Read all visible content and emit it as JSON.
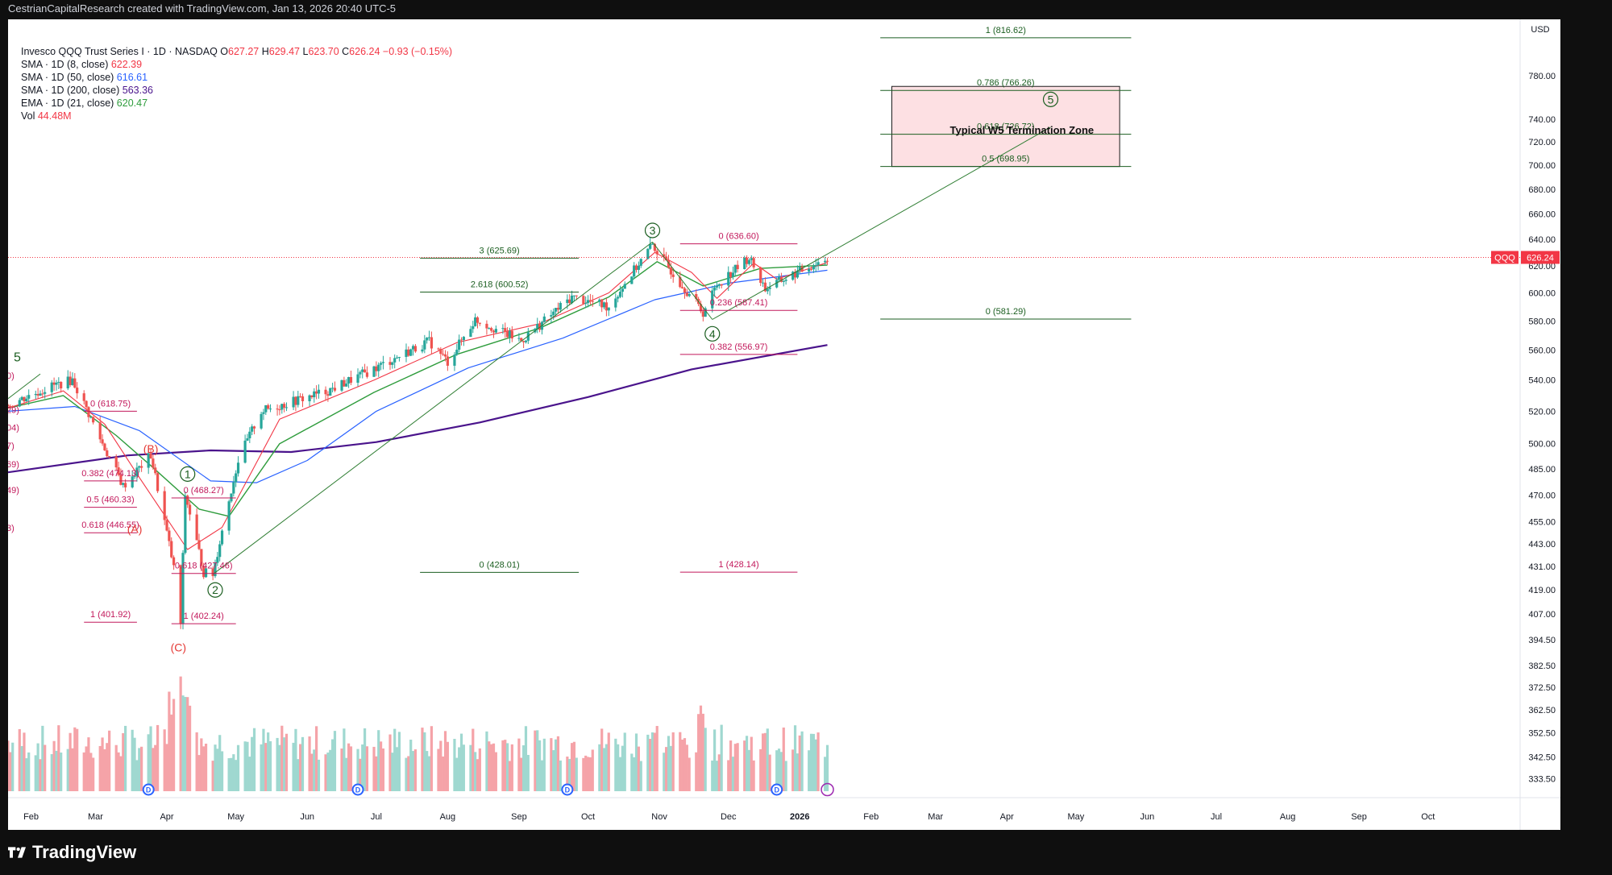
{
  "header": {
    "attribution": "CestrianCapitalResearch created with TradingView.com, Jan 13, 2026 20:40 UTC-5"
  },
  "legend": {
    "symbol_title": "Invesco QQQ Trust Series I · 1D · NASDAQ",
    "ohlc": [
      {
        "k": "O",
        "v": "627.27"
      },
      {
        "k": "H",
        "v": "629.47"
      },
      {
        "k": "L",
        "v": "623.70"
      },
      {
        "k": "C",
        "v": "626.24"
      }
    ],
    "change": "−0.93 (−0.15%)",
    "indicators": [
      {
        "label": "SMA · 1D (8, close)",
        "value": "622.39",
        "color": "#f23645"
      },
      {
        "label": "SMA · 1D (50, close)",
        "value": "616.61",
        "color": "#2962ff"
      },
      {
        "label": "SMA · 1D (200, close)",
        "value": "563.36",
        "color": "#4a148c"
      },
      {
        "label": "EMA · 1D (21, close)",
        "value": "620.47",
        "color": "#2e9c3c"
      },
      {
        "label": "Vol",
        "value": "44.48M",
        "color": "#f23645"
      }
    ]
  },
  "brand": {
    "name": "TradingView"
  },
  "colors": {
    "up": "#26a69a",
    "down": "#ef5350",
    "sma8": "#f23645",
    "sma50": "#2962ff",
    "sma200": "#4a148c",
    "ema21": "#2e9c3c",
    "fib_green": "#1b5e20",
    "fib_red": "#c2185b",
    "zone_fill": "#fde0e3",
    "last_price_bg": "#f23645"
  },
  "chart_data": {
    "type": "candlestick",
    "currency": "USD",
    "symbol_tag": "QQQ",
    "last_price": 626.24,
    "log_scale": true,
    "ylim": [
      326,
      835
    ],
    "y_ticks": [
      333.5,
      342.5,
      352.5,
      362.5,
      372.5,
      382.5,
      394.5,
      407.0,
      419.0,
      431.0,
      443.0,
      455.0,
      470.0,
      485.0,
      500.0,
      520.0,
      540.0,
      560.0,
      580.0,
      600.0,
      620.0,
      640.0,
      660.0,
      680.0,
      700.0,
      720.0,
      740.0,
      780.0
    ],
    "x_range": [
      "2025-01-22",
      "2026-11-10"
    ],
    "x_ticks": [
      {
        "label": "Feb",
        "date": "2025-02-01"
      },
      {
        "label": "Mar",
        "date": "2025-03-01"
      },
      {
        "label": "Apr",
        "date": "2025-04-01"
      },
      {
        "label": "May",
        "date": "2025-05-01"
      },
      {
        "label": "Jun",
        "date": "2025-06-01"
      },
      {
        "label": "Jul",
        "date": "2025-07-01"
      },
      {
        "label": "Aug",
        "date": "2025-08-01"
      },
      {
        "label": "Sep",
        "date": "2025-09-01"
      },
      {
        "label": "Oct",
        "date": "2025-10-01"
      },
      {
        "label": "Nov",
        "date": "2025-11-01"
      },
      {
        "label": "Dec",
        "date": "2025-12-01"
      },
      {
        "label": "2026",
        "date": "2026-01-01"
      },
      {
        "label": "Feb",
        "date": "2026-02-01"
      },
      {
        "label": "Mar",
        "date": "2026-03-01"
      },
      {
        "label": "Apr",
        "date": "2026-04-01"
      },
      {
        "label": "May",
        "date": "2026-05-01"
      },
      {
        "label": "Jun",
        "date": "2026-06-01"
      },
      {
        "label": "Jul",
        "date": "2026-07-01"
      },
      {
        "label": "Aug",
        "date": "2026-08-01"
      },
      {
        "label": "Sep",
        "date": "2026-09-01"
      },
      {
        "label": "Oct",
        "date": "2026-10-01"
      }
    ],
    "price_path": [
      [
        "2025-01-22",
        524
      ],
      [
        "2025-02-10",
        536
      ],
      [
        "2025-02-19",
        540
      ],
      [
        "2025-03-04",
        500
      ],
      [
        "2025-03-13",
        475
      ],
      [
        "2025-03-25",
        493
      ],
      [
        "2025-04-04",
        430
      ],
      [
        "2025-04-07",
        402
      ],
      [
        "2025-04-09",
        470
      ],
      [
        "2025-04-17",
        428
      ],
      [
        "2025-04-21",
        427
      ],
      [
        "2025-05-02",
        490
      ],
      [
        "2025-05-12",
        520
      ],
      [
        "2025-06-10",
        533
      ],
      [
        "2025-07-01",
        548
      ],
      [
        "2025-07-24",
        566
      ],
      [
        "2025-08-01",
        552
      ],
      [
        "2025-08-13",
        581
      ],
      [
        "2025-09-02",
        566
      ],
      [
        "2025-09-24",
        597
      ],
      [
        "2025-10-10",
        590
      ],
      [
        "2025-10-29",
        636
      ],
      [
        "2025-11-04",
        621
      ],
      [
        "2025-11-20",
        586
      ],
      [
        "2025-11-26",
        606
      ],
      [
        "2025-12-10",
        626
      ],
      [
        "2025-12-17",
        603
      ],
      [
        "2026-01-13",
        626
      ]
    ],
    "sma8": [
      [
        "2025-01-22",
        522
      ],
      [
        "2025-02-15",
        533
      ],
      [
        "2025-03-05",
        512
      ],
      [
        "2025-03-20",
        480
      ],
      [
        "2025-04-10",
        440
      ],
      [
        "2025-04-25",
        452
      ],
      [
        "2025-05-20",
        515
      ],
      [
        "2025-06-30",
        540
      ],
      [
        "2025-08-05",
        565
      ],
      [
        "2025-09-10",
        578
      ],
      [
        "2025-10-10",
        600
      ],
      [
        "2025-10-30",
        630
      ],
      [
        "2025-11-15",
        615
      ],
      [
        "2025-11-26",
        596
      ],
      [
        "2025-12-12",
        622
      ],
      [
        "2025-12-22",
        610
      ],
      [
        "2026-01-13",
        622.39
      ]
    ],
    "ema21": [
      [
        "2025-01-22",
        522
      ],
      [
        "2025-02-15",
        530
      ],
      [
        "2025-03-10",
        505
      ],
      [
        "2025-03-25",
        487
      ],
      [
        "2025-04-15",
        462
      ],
      [
        "2025-04-28",
        458
      ],
      [
        "2025-05-20",
        500
      ],
      [
        "2025-06-30",
        532
      ],
      [
        "2025-08-05",
        557
      ],
      [
        "2025-09-10",
        575
      ],
      [
        "2025-10-10",
        597
      ],
      [
        "2025-10-31",
        623
      ],
      [
        "2025-11-20",
        605
      ],
      [
        "2025-12-15",
        618
      ],
      [
        "2026-01-13",
        620.47
      ]
    ],
    "sma50": [
      [
        "2025-01-22",
        520
      ],
      [
        "2025-02-20",
        523
      ],
      [
        "2025-03-20",
        508
      ],
      [
        "2025-04-20",
        478
      ],
      [
        "2025-05-10",
        477
      ],
      [
        "2025-06-01",
        490
      ],
      [
        "2025-07-01",
        520
      ],
      [
        "2025-08-10",
        548
      ],
      [
        "2025-09-20",
        568
      ],
      [
        "2025-10-30",
        595
      ],
      [
        "2025-12-01",
        607
      ],
      [
        "2026-01-13",
        616.61
      ]
    ],
    "sma200": [
      [
        "2025-01-22",
        483
      ],
      [
        "2025-03-15",
        493
      ],
      [
        "2025-04-20",
        496
      ],
      [
        "2025-05-25",
        495
      ],
      [
        "2025-07-01",
        501
      ],
      [
        "2025-08-15",
        513
      ],
      [
        "2025-10-01",
        529
      ],
      [
        "2025-11-15",
        547
      ],
      [
        "2026-01-13",
        563.36
      ]
    ],
    "volume_spikes": [
      [
        "2025-04-04",
        0.85
      ],
      [
        "2025-04-07",
        1.0
      ],
      [
        "2025-04-09",
        0.92
      ],
      [
        "2025-11-20",
        0.72
      ],
      [
        "2025-10-29",
        0.52
      ]
    ],
    "fib_levels": [
      {
        "label": "1 (816.62)",
        "price": 816.62,
        "from": "2026-02-05",
        "to": "2026-05-25",
        "color": "green"
      },
      {
        "label": "0.786 (766.26)",
        "price": 766.26,
        "from": "2026-02-05",
        "to": "2026-05-25",
        "color": "green"
      },
      {
        "label": "0.618 (726.72)",
        "price": 726.72,
        "from": "2026-02-05",
        "to": "2026-05-25",
        "color": "green"
      },
      {
        "label": "0.5 (698.95)",
        "price": 698.95,
        "from": "2026-02-05",
        "to": "2026-05-25",
        "color": "green"
      },
      {
        "label": "0 (581.29)",
        "price": 581.29,
        "from": "2026-02-05",
        "to": "2026-05-25",
        "color": "green"
      },
      {
        "label": "3 (625.69)",
        "price": 625.69,
        "from": "2025-07-20",
        "to": "2025-09-27",
        "color": "green"
      },
      {
        "label": "2.618 (600.52)",
        "price": 600.52,
        "from": "2025-07-20",
        "to": "2025-09-27",
        "color": "green"
      },
      {
        "label": "0 (428.01)",
        "price": 428.01,
        "from": "2025-07-20",
        "to": "2025-09-27",
        "color": "green"
      },
      {
        "label": "0 (636.60)",
        "price": 636.6,
        "from": "2025-11-10",
        "to": "2025-12-31",
        "color": "red"
      },
      {
        "label": "0.236 (587.41)",
        "price": 587.41,
        "from": "2025-11-10",
        "to": "2025-12-31",
        "color": "red"
      },
      {
        "label": "0.382 (556.97)",
        "price": 556.97,
        "from": "2025-11-10",
        "to": "2025-12-31",
        "color": "red"
      },
      {
        "label": "1 (428.14)",
        "price": 428.14,
        "from": "2025-11-10",
        "to": "2025-12-31",
        "color": "red"
      },
      {
        "label": "0 (618.75)",
        "price": 618.75,
        "from": "2025-02-24",
        "to": "2025-03-19",
        "color": "red",
        "plot_price": 520
      },
      {
        "label": "0.382 (474.13)",
        "price": 474.13,
        "from": "2025-02-24",
        "to": "2025-03-19",
        "color": "red",
        "plot_price": 478
      },
      {
        "label": "0.5 (460.33)",
        "price": 460.33,
        "from": "2025-02-24",
        "to": "2025-03-19",
        "color": "red",
        "plot_price": 463
      },
      {
        "label": "0.618 (446.55)",
        "price": 446.55,
        "from": "2025-02-24",
        "to": "2025-03-19",
        "color": "red",
        "plot_price": 449
      },
      {
        "label": "1 (401.92)",
        "price": 401.92,
        "from": "2025-02-24",
        "to": "2025-03-19",
        "color": "red",
        "plot_price": 403
      },
      {
        "label": "0 (468.27)",
        "price": 468.27,
        "from": "2025-04-03",
        "to": "2025-05-01",
        "color": "red"
      },
      {
        "label": "0.618 (427.46)",
        "price": 427.46,
        "from": "2025-04-03",
        "to": "2025-05-01",
        "color": "red"
      },
      {
        "label": "1 (402.24)",
        "price": 402.24,
        "from": "2025-04-03",
        "to": "2025-05-01",
        "color": "red"
      }
    ],
    "clipped_left_labels": [
      {
        "label": "0)",
        "price": 541
      },
      {
        "label": "29)",
        "price": 519
      },
      {
        "label": "04)",
        "price": 508
      },
      {
        "label": "7)",
        "price": 497
      },
      {
        "label": "69)",
        "price": 486
      },
      {
        "label": "49)",
        "price": 471
      },
      {
        "label": "3)",
        "price": 450
      }
    ],
    "wave_labels": [
      {
        "label": "5",
        "date": "2025-01-26",
        "price": 555,
        "style": "plain",
        "color": "green"
      },
      {
        "label": "(B)",
        "date": "2025-03-25",
        "price": 497,
        "style": "plain",
        "color": "red"
      },
      {
        "label": "(A)",
        "date": "2025-03-18",
        "price": 451,
        "style": "plain",
        "color": "red"
      },
      {
        "label": "(C)",
        "date": "2025-04-06",
        "price": 391,
        "style": "plain",
        "color": "red"
      },
      {
        "label": "1",
        "date": "2025-04-10",
        "price": 482,
        "style": "circled",
        "color": "green"
      },
      {
        "label": "2",
        "date": "2025-04-22",
        "price": 419,
        "style": "circled",
        "color": "green"
      },
      {
        "label": "3",
        "date": "2025-10-29",
        "price": 647,
        "style": "circled",
        "color": "green"
      },
      {
        "label": "4",
        "date": "2025-11-24",
        "price": 571,
        "style": "circled",
        "color": "green"
      },
      {
        "label": "5",
        "date": "2026-04-20",
        "price": 758,
        "style": "circled",
        "color": "green"
      }
    ],
    "trend_lines": [
      {
        "points": [
          [
            "2025-04-21",
            427
          ],
          [
            "2025-10-29",
            638
          ]
        ]
      },
      {
        "points": [
          [
            "2025-10-29",
            638
          ],
          [
            "2025-11-24",
            581
          ]
        ]
      },
      {
        "points": [
          [
            "2025-11-24",
            581
          ],
          [
            "2026-04-20",
            733
          ]
        ]
      },
      {
        "points": [
          [
            "2025-01-22",
            528
          ],
          [
            "2025-02-05",
            544
          ]
        ]
      }
    ],
    "zone": {
      "label": "Typical W5 Termination Zone",
      "from": "2026-02-10",
      "to": "2026-05-20",
      "top": 770,
      "bottom": 698.95
    },
    "dividend_markers": [
      "2025-03-24",
      "2025-06-23",
      "2025-09-22",
      "2025-12-22"
    ],
    "event_marker": "2026-01-13"
  }
}
